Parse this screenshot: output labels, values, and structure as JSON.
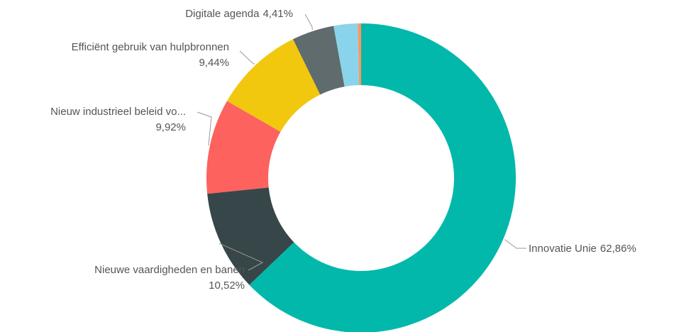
{
  "chart_data": {
    "type": "donut",
    "categories": [
      "Innovatie Unie",
      "Nieuwe vaardigheden en banen",
      "Nieuw industrieel beleid vo...",
      "Efficiënt gebruik van hulpbronnen",
      "Digitale agenda",
      null,
      null
    ],
    "values": [
      62.86,
      10.52,
      9.92,
      9.44,
      4.41,
      2.5,
      0.35
    ],
    "value_labels": [
      "62,86%",
      "10,52%",
      "9,92%",
      "9,44%",
      "4,41%",
      null,
      null
    ],
    "colors": [
      "#01B8AA",
      "#374649",
      "#FD625E",
      "#F2C80F",
      "#5F6B6D",
      "#8AD4EB",
      "#FE9666"
    ]
  }
}
